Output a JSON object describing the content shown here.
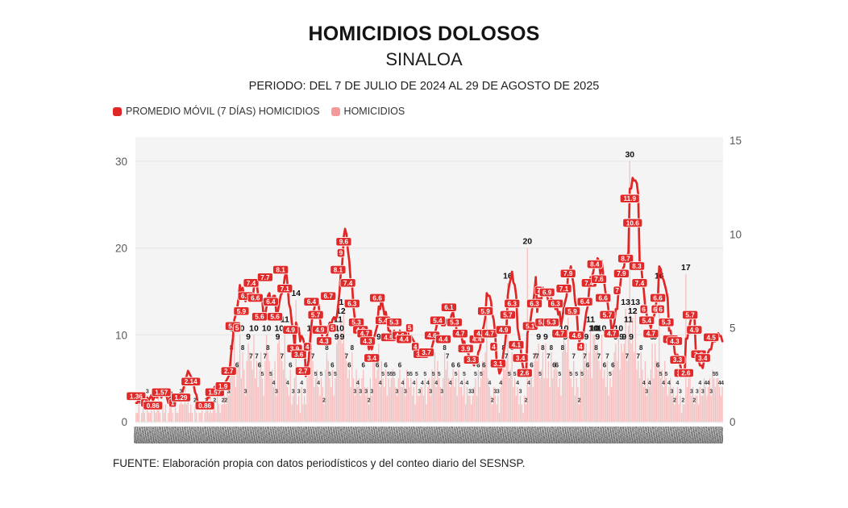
{
  "header": {
    "title": "HOMICIDIOS DOLOSOS",
    "subtitle": "SINALOA",
    "period": "PERIODO: DEL 7 DE JULIO DE 2024 AL 29 DE AGOSTO DE 2025"
  },
  "legend": [
    {
      "label": "PROMEDIO MÓVIL (7 DÍAS) HOMICIDIOS",
      "color": "#e12626"
    },
    {
      "label": "HOMICIDIOS",
      "color": "#f49a9a"
    }
  ],
  "source": "FUENTE: Elaboración propia con datos periodísticos y del conteo diario del SESNSP.",
  "chart_data": {
    "type": "bar",
    "subtype": "daily bars + 7-day moving average line",
    "title": "HOMICIDIOS DOLOSOS — SINALOA",
    "xlabel": "fechas diarias (7 jul 2024 - 29 ago 2025, etiquetas ilegibles)",
    "left_axis": {
      "ticks": [
        0,
        10,
        20,
        30
      ],
      "max": 33,
      "series": "HOMICIDIOS"
    },
    "right_axis": {
      "ticks": [
        0,
        5,
        10,
        15
      ],
      "max": 15.2,
      "series": "PROMEDIO MÓVIL (7 DÍAS)"
    },
    "grid": "horizontal",
    "legend_position": "top-left",
    "colors": {
      "bar": "#f6bebe",
      "line": "#e12626",
      "line_label_bg": "#e02a2a",
      "plot_bg": "#f4f4f4",
      "grid": "#e5e5e5",
      "axis_text": "#5a5a5a",
      "bar_label_small": "#3a3a3a",
      "bar_label_mid": "#222222",
      "bar_label_big": "#111111"
    },
    "series": [
      {
        "name": "HOMICIDIOS",
        "type": "bar",
        "axis": "left",
        "values": [
          1,
          1,
          2,
          0,
          1,
          2,
          1,
          0,
          3,
          1,
          1,
          2,
          0,
          2,
          1,
          2,
          3,
          1,
          0,
          2,
          1,
          2,
          0,
          1,
          3,
          2,
          1,
          0,
          2,
          1,
          1,
          2,
          3,
          2,
          2,
          5,
          2,
          3,
          1,
          2,
          1,
          0,
          2,
          1,
          0,
          1,
          1,
          2,
          0,
          1,
          2,
          2,
          1,
          3,
          1,
          2,
          2,
          1,
          3,
          2,
          1,
          2,
          2,
          3,
          2,
          4,
          3,
          5,
          8,
          6,
          10,
          4,
          6,
          7,
          10,
          5,
          8,
          6,
          3,
          7,
          9,
          8,
          7,
          6,
          10,
          5,
          7,
          4,
          6,
          8,
          5,
          3,
          7,
          10,
          8,
          7,
          5,
          6,
          4,
          7,
          3,
          9,
          10,
          8,
          7,
          6,
          11,
          5,
          4,
          3,
          6,
          2,
          3,
          5,
          14,
          2,
          3,
          1,
          4,
          2,
          3,
          2,
          5,
          6,
          8,
          10,
          7,
          4,
          5,
          6,
          4,
          3,
          5,
          4,
          2,
          6,
          8,
          7,
          5,
          4,
          6,
          3,
          5,
          9,
          11,
          10,
          12,
          9,
          13,
          8,
          7,
          5,
          6,
          4,
          8,
          5,
          3,
          6,
          4,
          5,
          3,
          5,
          6,
          4,
          3,
          4,
          2,
          5,
          3,
          8,
          7,
          5,
          6,
          9,
          4,
          7,
          5,
          4,
          6,
          3,
          5,
          4,
          5,
          6,
          5,
          4,
          3,
          5,
          6,
          4,
          4,
          5,
          3,
          6,
          5,
          4,
          5,
          3,
          4,
          2,
          5,
          3,
          3,
          4,
          4,
          3,
          5,
          2,
          4,
          5,
          3,
          6,
          5,
          8,
          4,
          7,
          5,
          4,
          3,
          5,
          8,
          6,
          7,
          5,
          4,
          5,
          6,
          4,
          5,
          3,
          6,
          4,
          4,
          3,
          5,
          2,
          4,
          3,
          3,
          2,
          3,
          4,
          5,
          3,
          6,
          4,
          5,
          7,
          6,
          8,
          12,
          5,
          4,
          3,
          2,
          4,
          3,
          2,
          3,
          1,
          4,
          5,
          8,
          6,
          7,
          16,
          5,
          6,
          8,
          4,
          5,
          3,
          4,
          2,
          3,
          2,
          1,
          3,
          2,
          20,
          4,
          5,
          6,
          4,
          7,
          8,
          7,
          9,
          5,
          6,
          8,
          5,
          9,
          5,
          7,
          4,
          8,
          5,
          6,
          7,
          6,
          4,
          5,
          3,
          8,
          10,
          9,
          8,
          12,
          6,
          5,
          4,
          7,
          3,
          5,
          4,
          2,
          6,
          5,
          8,
          7,
          9,
          6,
          8,
          11,
          5,
          10,
          10,
          8,
          9,
          7,
          6,
          10,
          5,
          6,
          4,
          7,
          3,
          5,
          4,
          6,
          8,
          9,
          7,
          10,
          6,
          9,
          8,
          9,
          13,
          7,
          11,
          30,
          9,
          12,
          8,
          13,
          6,
          7,
          5,
          8,
          6,
          4,
          7,
          3,
          5,
          4,
          6,
          9,
          5,
          9,
          7,
          6,
          16,
          5,
          6,
          4,
          7,
          5,
          3,
          4,
          5,
          3,
          4,
          2,
          3,
          4,
          2,
          3,
          1,
          2,
          2,
          17,
          4,
          5,
          6,
          3,
          4,
          2,
          3,
          3,
          2,
          4,
          3,
          3,
          5,
          4,
          3,
          4,
          5,
          3,
          6,
          5,
          4,
          5,
          5,
          4,
          3,
          4
        ]
      },
      {
        "name": "PROMEDIO MÓVIL (7 DÍAS) HOMICIDIOS",
        "type": "line",
        "axis": "right",
        "window": 7,
        "labels": [
          {
            "i": 0,
            "t": "1.36"
          },
          {
            "i": 6,
            "t": "1"
          },
          {
            "i": 12,
            "t": "0.86"
          },
          {
            "i": 18,
            "t": "1.57"
          },
          {
            "i": 26,
            "t": "1"
          },
          {
            "i": 32,
            "t": "1.29"
          },
          {
            "i": 39,
            "t": "2.14"
          },
          {
            "i": 49,
            "t": "0.86"
          },
          {
            "i": 56,
            "t": "1.57"
          },
          {
            "i": 62,
            "t": "1.9"
          },
          {
            "i": 66,
            "t": "2.7"
          },
          {
            "i": 69,
            "t": "5.1"
          },
          {
            "i": 72,
            "t": "5"
          },
          {
            "i": 75,
            "t": "5.9"
          },
          {
            "i": 78,
            "t": "6.7"
          },
          {
            "i": 82,
            "t": "7.4"
          },
          {
            "i": 85,
            "t": "6.6"
          },
          {
            "i": 88,
            "t": "5.6"
          },
          {
            "i": 92,
            "t": "7.7"
          },
          {
            "i": 96,
            "t": "6.4"
          },
          {
            "i": 99,
            "t": "5.6"
          },
          {
            "i": 103,
            "t": "8.1"
          },
          {
            "i": 106,
            "t": "7.1"
          },
          {
            "i": 110,
            "t": "4.9"
          },
          {
            "i": 113,
            "t": "3.9"
          },
          {
            "i": 116,
            "t": "3.6"
          },
          {
            "i": 119,
            "t": "2.7"
          },
          {
            "i": 122,
            "t": "4"
          },
          {
            "i": 125,
            "t": "6.4"
          },
          {
            "i": 128,
            "t": "5.7"
          },
          {
            "i": 131,
            "t": "4.9"
          },
          {
            "i": 134,
            "t": "4.3"
          },
          {
            "i": 137,
            "t": "6.7"
          },
          {
            "i": 140,
            "t": "5"
          },
          {
            "i": 144,
            "t": "8.1"
          },
          {
            "i": 146,
            "t": "9"
          },
          {
            "i": 148,
            "t": "9.6"
          },
          {
            "i": 151,
            "t": "7.4"
          },
          {
            "i": 154,
            "t": "6.3"
          },
          {
            "i": 157,
            "t": "5.3"
          },
          {
            "i": 160,
            "t": "4.9"
          },
          {
            "i": 163,
            "t": "4.7"
          },
          {
            "i": 165,
            "t": "4.3"
          },
          {
            "i": 168,
            "t": "3.4"
          },
          {
            "i": 172,
            "t": "6.6"
          },
          {
            "i": 176,
            "t": "5.4"
          },
          {
            "i": 180,
            "t": "4.5"
          },
          {
            "i": 184,
            "t": "5.3"
          },
          {
            "i": 188,
            "t": "4.6"
          },
          {
            "i": 191,
            "t": "4.4"
          },
          {
            "i": 195,
            "t": "5"
          },
          {
            "i": 199,
            "t": "4"
          },
          {
            "i": 203,
            "t": "3.6"
          },
          {
            "i": 207,
            "t": "3.7"
          },
          {
            "i": 211,
            "t": "4.6"
          },
          {
            "i": 215,
            "t": "5.4"
          },
          {
            "i": 219,
            "t": "4.4"
          },
          {
            "i": 223,
            "t": "6.1"
          },
          {
            "i": 227,
            "t": "5.3"
          },
          {
            "i": 231,
            "t": "4.7"
          },
          {
            "i": 235,
            "t": "3.9"
          },
          {
            "i": 239,
            "t": "3.3"
          },
          {
            "i": 243,
            "t": "4.4"
          },
          {
            "i": 246,
            "t": "4.7"
          },
          {
            "i": 249,
            "t": "5.9"
          },
          {
            "i": 252,
            "t": "4.7"
          },
          {
            "i": 255,
            "t": "4"
          },
          {
            "i": 258,
            "t": "3.1"
          },
          {
            "i": 262,
            "t": "4.9"
          },
          {
            "i": 265,
            "t": "5.7"
          },
          {
            "i": 268,
            "t": "6.3"
          },
          {
            "i": 271,
            "t": "4.1"
          },
          {
            "i": 274,
            "t": "3.4"
          },
          {
            "i": 277,
            "t": "2.6"
          },
          {
            "i": 281,
            "t": "5.1"
          },
          {
            "i": 284,
            "t": "6.3"
          },
          {
            "i": 287,
            "t": "7"
          },
          {
            "i": 290,
            "t": "5.3"
          },
          {
            "i": 293,
            "t": "6.9"
          },
          {
            "i": 296,
            "t": "5.3"
          },
          {
            "i": 299,
            "t": "6.3"
          },
          {
            "i": 302,
            "t": "4.7"
          },
          {
            "i": 305,
            "t": "7.1"
          },
          {
            "i": 308,
            "t": "7.9"
          },
          {
            "i": 311,
            "t": "5.9"
          },
          {
            "i": 314,
            "t": "4.6"
          },
          {
            "i": 317,
            "t": "4"
          },
          {
            "i": 320,
            "t": "6.4"
          },
          {
            "i": 323,
            "t": "7.4"
          },
          {
            "i": 327,
            "t": "8.4"
          },
          {
            "i": 330,
            "t": "7.6"
          },
          {
            "i": 333,
            "t": "6.6"
          },
          {
            "i": 336,
            "t": "5.7"
          },
          {
            "i": 339,
            "t": "4.7"
          },
          {
            "i": 343,
            "t": "7"
          },
          {
            "i": 346,
            "t": "7.9"
          },
          {
            "i": 349,
            "t": "8.7"
          },
          {
            "i": 352,
            "t": "11.9"
          },
          {
            "i": 354,
            "t": "10.6"
          },
          {
            "i": 357,
            "t": "8.3"
          },
          {
            "i": 359,
            "t": "7.4"
          },
          {
            "i": 362,
            "t": "6"
          },
          {
            "i": 364,
            "t": "5.4"
          },
          {
            "i": 367,
            "t": "4.7"
          },
          {
            "i": 370,
            "t": "6"
          },
          {
            "i": 372,
            "t": "6.6"
          },
          {
            "i": 374,
            "t": "6"
          },
          {
            "i": 378,
            "t": "5.3"
          },
          {
            "i": 381,
            "t": "4.4"
          },
          {
            "i": 384,
            "t": "4.3"
          },
          {
            "i": 386,
            "t": "3.3"
          },
          {
            "i": 389,
            "t": "2.6"
          },
          {
            "i": 392,
            "t": "2.6"
          },
          {
            "i": 395,
            "t": "5.7"
          },
          {
            "i": 398,
            "t": "4.9"
          },
          {
            "i": 401,
            "t": "3.6"
          },
          {
            "i": 404,
            "t": "3.4"
          },
          {
            "i": 410,
            "t": "4.5"
          }
        ]
      }
    ]
  }
}
